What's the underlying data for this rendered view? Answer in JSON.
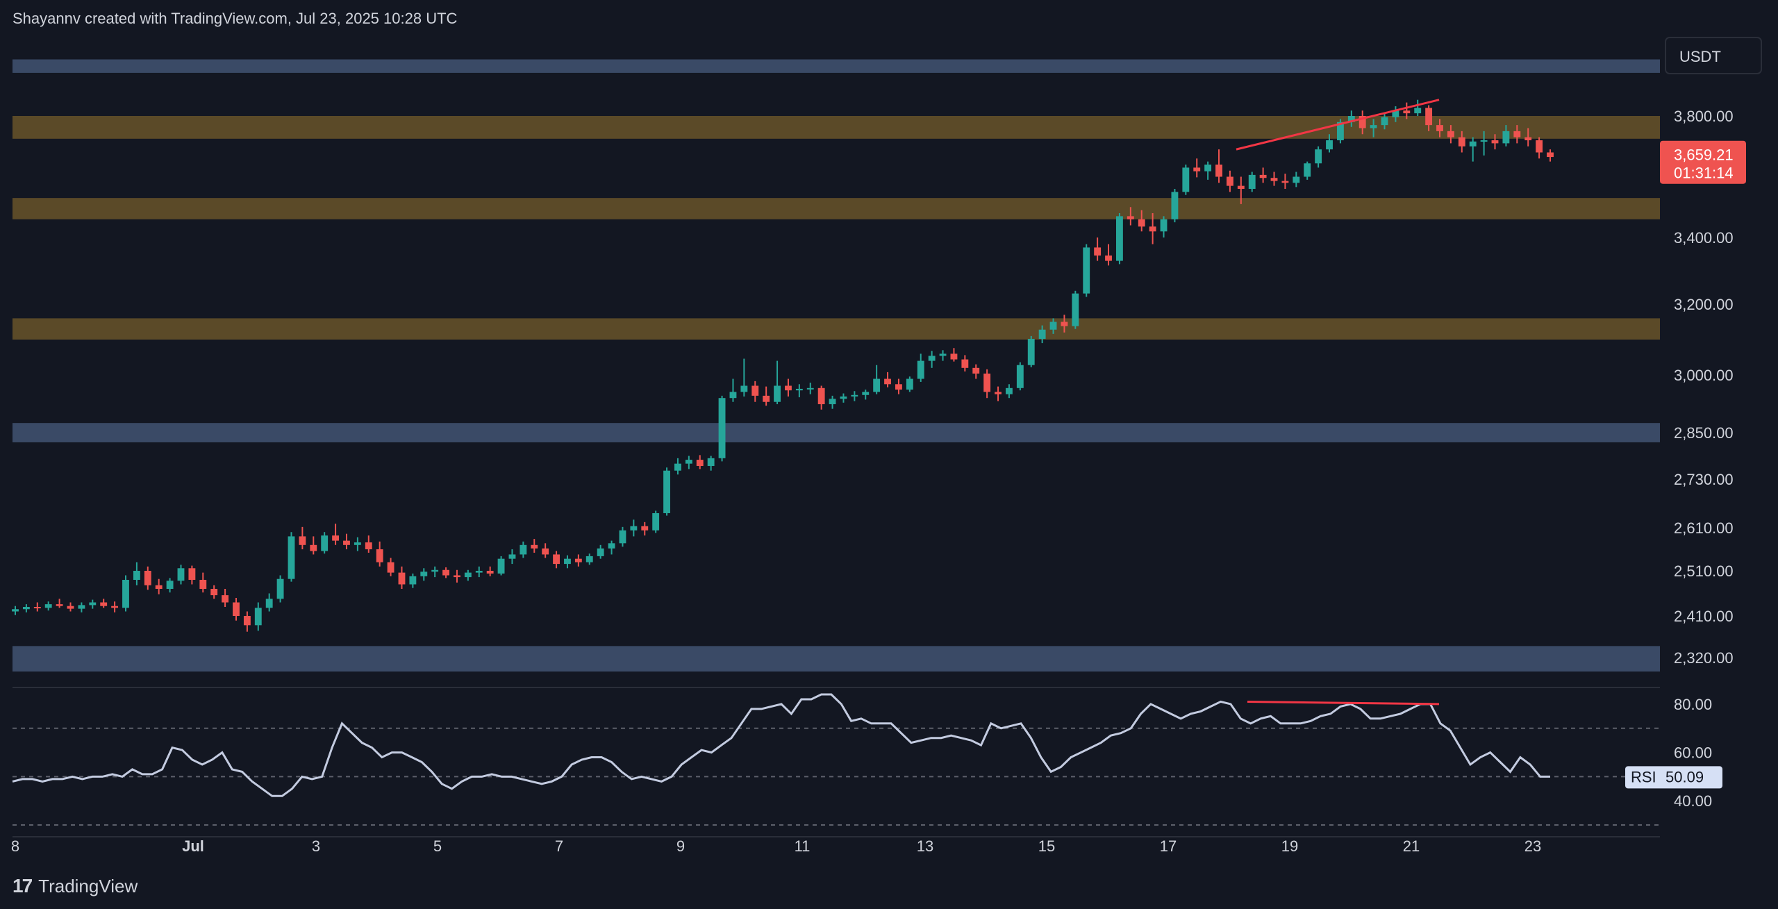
{
  "header": {
    "text": "Shayannv created with TradingView.com, Jul 23, 2025 10:28 UTC"
  },
  "footer": {
    "logo_text": "TradingView"
  },
  "colors": {
    "background": "#131722",
    "up": "#26a69a",
    "down": "#ef5350",
    "supply_zone": "#5b4a28",
    "support_zone": "#3a4a66",
    "rsi_line": "#c3cbe0",
    "divergence": "#f23645"
  },
  "chart_data": [
    {
      "type": "candlestick",
      "currency": "USDT",
      "current_price": "3,659.21",
      "countdown": "01:31:14",
      "price_ticks": [
        "3,800.00",
        "3,659.21",
        "3,400.00",
        "3,200.00",
        "3,000.00",
        "2,850.00",
        "2,730.00",
        "2,610.00",
        "2,510.00",
        "2,410.00",
        "2,320.00"
      ],
      "price_tick_values": [
        3800,
        3400,
        3200,
        3000,
        2850,
        2730,
        2610,
        2510,
        2410,
        2320
      ],
      "x_ticks": [
        "8",
        "Jul",
        "3",
        "5",
        "7",
        "9",
        "11",
        "13",
        "15",
        "17",
        "19",
        "21",
        "23"
      ],
      "zones": [
        {
          "kind": "support",
          "low": 2290,
          "high": 2345
        },
        {
          "kind": "support",
          "low": 2825,
          "high": 2875
        },
        {
          "kind": "supply",
          "low": 3100,
          "high": 3160
        },
        {
          "kind": "supply",
          "low": 3460,
          "high": 3530
        },
        {
          "kind": "supply",
          "low": 3725,
          "high": 3800
        },
        {
          "kind": "support",
          "low": 3960,
          "high": 4010
        }
      ],
      "divergence_price": {
        "from": {
          "x": "Jul 18",
          "y": 3690
        },
        "to": {
          "x": "Jul 21",
          "y": 3860
        }
      },
      "ohlc": [
        [
          2420,
          2432,
          2412,
          2425
        ],
        [
          2425,
          2436,
          2418,
          2430
        ],
        [
          2430,
          2440,
          2420,
          2428
        ],
        [
          2428,
          2442,
          2422,
          2436
        ],
        [
          2436,
          2448,
          2428,
          2432
        ],
        [
          2432,
          2440,
          2420,
          2426
        ],
        [
          2426,
          2440,
          2418,
          2434
        ],
        [
          2434,
          2446,
          2426,
          2440
        ],
        [
          2440,
          2448,
          2428,
          2432
        ],
        [
          2432,
          2442,
          2418,
          2428
        ],
        [
          2428,
          2500,
          2420,
          2490
        ],
        [
          2490,
          2530,
          2478,
          2510
        ],
        [
          2510,
          2520,
          2468,
          2478
        ],
        [
          2478,
          2492,
          2458,
          2470
        ],
        [
          2470,
          2494,
          2462,
          2488
        ],
        [
          2488,
          2524,
          2480,
          2516
        ],
        [
          2516,
          2522,
          2480,
          2490
        ],
        [
          2490,
          2506,
          2462,
          2470
        ],
        [
          2470,
          2478,
          2448,
          2456
        ],
        [
          2456,
          2470,
          2430,
          2440
        ],
        [
          2440,
          2450,
          2400,
          2410
        ],
        [
          2410,
          2420,
          2376,
          2390
        ],
        [
          2390,
          2440,
          2378,
          2428
        ],
        [
          2428,
          2460,
          2420,
          2448
        ],
        [
          2448,
          2500,
          2440,
          2492
        ],
        [
          2492,
          2600,
          2486,
          2590
        ],
        [
          2590,
          2612,
          2560,
          2570
        ],
        [
          2570,
          2590,
          2548,
          2556
        ],
        [
          2556,
          2600,
          2550,
          2592
        ],
        [
          2592,
          2620,
          2570,
          2580
        ],
        [
          2580,
          2596,
          2560,
          2570
        ],
        [
          2570,
          2588,
          2556,
          2576
        ],
        [
          2576,
          2592,
          2552,
          2560
        ],
        [
          2560,
          2578,
          2520,
          2530
        ],
        [
          2530,
          2540,
          2498,
          2506
        ],
        [
          2506,
          2520,
          2470,
          2480
        ],
        [
          2480,
          2504,
          2472,
          2498
        ],
        [
          2498,
          2516,
          2488,
          2508
        ],
        [
          2508,
          2520,
          2496,
          2512
        ],
        [
          2512,
          2518,
          2494,
          2500
        ],
        [
          2500,
          2512,
          2484,
          2496
        ],
        [
          2496,
          2512,
          2488,
          2506
        ],
        [
          2506,
          2520,
          2496,
          2510
        ],
        [
          2510,
          2520,
          2498,
          2504
        ],
        [
          2504,
          2544,
          2500,
          2538
        ],
        [
          2538,
          2560,
          2526,
          2548
        ],
        [
          2548,
          2578,
          2540,
          2570
        ],
        [
          2570,
          2584,
          2552,
          2562
        ],
        [
          2562,
          2574,
          2540,
          2548
        ],
        [
          2548,
          2556,
          2516,
          2526
        ],
        [
          2526,
          2546,
          2516,
          2538
        ],
        [
          2538,
          2548,
          2520,
          2530
        ],
        [
          2530,
          2550,
          2524,
          2544
        ],
        [
          2544,
          2570,
          2538,
          2562
        ],
        [
          2562,
          2580,
          2548,
          2574
        ],
        [
          2574,
          2612,
          2566,
          2604
        ],
        [
          2604,
          2630,
          2590,
          2614
        ],
        [
          2614,
          2624,
          2592,
          2604
        ],
        [
          2604,
          2652,
          2598,
          2646
        ],
        [
          2646,
          2760,
          2640,
          2752
        ],
        [
          2752,
          2784,
          2742,
          2770
        ],
        [
          2770,
          2790,
          2756,
          2780
        ],
        [
          2780,
          2792,
          2756,
          2764
        ],
        [
          2764,
          2790,
          2752,
          2784
        ],
        [
          2784,
          2946,
          2776,
          2940
        ],
        [
          2940,
          2990,
          2930,
          2956
        ],
        [
          2956,
          3046,
          2944,
          2972
        ],
        [
          2972,
          2984,
          2930,
          2946
        ],
        [
          2946,
          2970,
          2920,
          2930
        ],
        [
          2930,
          3040,
          2924,
          2972
        ],
        [
          2972,
          2990,
          2944,
          2960
        ],
        [
          2960,
          2976,
          2942,
          2964
        ],
        [
          2964,
          2980,
          2950,
          2966
        ],
        [
          2966,
          2972,
          2910,
          2924
        ],
        [
          2924,
          2946,
          2912,
          2938
        ],
        [
          2938,
          2952,
          2928,
          2944
        ],
        [
          2944,
          2958,
          2932,
          2948
        ],
        [
          2948,
          2962,
          2936,
          2956
        ],
        [
          2956,
          3028,
          2950,
          2990
        ],
        [
          2990,
          3008,
          2968,
          2976
        ],
        [
          2976,
          2990,
          2950,
          2962
        ],
        [
          2962,
          2996,
          2956,
          2990
        ],
        [
          2990,
          3060,
          2982,
          3040
        ],
        [
          3040,
          3068,
          3020,
          3054
        ],
        [
          3054,
          3070,
          3040,
          3060
        ],
        [
          3060,
          3076,
          3038,
          3044
        ],
        [
          3044,
          3056,
          3010,
          3020
        ],
        [
          3020,
          3030,
          2990,
          3004
        ],
        [
          3004,
          3016,
          2940,
          2956
        ],
        [
          2956,
          2970,
          2932,
          2950
        ],
        [
          2950,
          2976,
          2940,
          2966
        ],
        [
          2966,
          3036,
          2960,
          3028
        ],
        [
          3028,
          3110,
          3022,
          3102
        ],
        [
          3102,
          3140,
          3090,
          3128
        ],
        [
          3128,
          3160,
          3116,
          3150
        ],
        [
          3150,
          3170,
          3120,
          3138
        ],
        [
          3138,
          3240,
          3130,
          3232
        ],
        [
          3232,
          3380,
          3222,
          3370
        ],
        [
          3370,
          3400,
          3330,
          3346
        ],
        [
          3346,
          3380,
          3316,
          3330
        ],
        [
          3330,
          3480,
          3320,
          3470
        ],
        [
          3470,
          3500,
          3440,
          3460
        ],
        [
          3460,
          3490,
          3420,
          3436
        ],
        [
          3436,
          3480,
          3380,
          3420
        ],
        [
          3420,
          3470,
          3400,
          3460
        ],
        [
          3460,
          3560,
          3450,
          3550
        ],
        [
          3550,
          3640,
          3540,
          3630
        ],
        [
          3630,
          3660,
          3598,
          3618
        ],
        [
          3618,
          3650,
          3590,
          3640
        ],
        [
          3640,
          3690,
          3580,
          3600
        ],
        [
          3600,
          3620,
          3550,
          3570
        ],
        [
          3570,
          3600,
          3510,
          3560
        ],
        [
          3560,
          3616,
          3550,
          3606
        ],
        [
          3606,
          3630,
          3580,
          3596
        ],
        [
          3596,
          3616,
          3570,
          3586
        ],
        [
          3586,
          3610,
          3560,
          3580
        ],
        [
          3580,
          3616,
          3566,
          3600
        ],
        [
          3600,
          3650,
          3590,
          3644
        ],
        [
          3644,
          3700,
          3630,
          3690
        ],
        [
          3690,
          3740,
          3680,
          3720
        ],
        [
          3720,
          3790,
          3710,
          3780
        ],
        [
          3780,
          3820,
          3764,
          3800
        ],
        [
          3800,
          3820,
          3740,
          3760
        ],
        [
          3760,
          3790,
          3730,
          3770
        ],
        [
          3770,
          3810,
          3756,
          3796
        ],
        [
          3796,
          3836,
          3780,
          3820
        ],
        [
          3820,
          3850,
          3790,
          3810
        ],
        [
          3810,
          3860,
          3800,
          3830
        ],
        [
          3830,
          3840,
          3750,
          3770
        ],
        [
          3770,
          3790,
          3730,
          3750
        ],
        [
          3750,
          3770,
          3710,
          3730
        ],
        [
          3730,
          3750,
          3680,
          3700
        ],
        [
          3700,
          3730,
          3650,
          3716
        ],
        [
          3716,
          3750,
          3670,
          3720
        ],
        [
          3720,
          3740,
          3690,
          3710
        ],
        [
          3710,
          3770,
          3700,
          3750
        ],
        [
          3750,
          3770,
          3710,
          3730
        ],
        [
          3730,
          3760,
          3700,
          3720
        ],
        [
          3720,
          3730,
          3660,
          3680
        ],
        [
          3680,
          3690,
          3650,
          3665
        ]
      ]
    },
    {
      "type": "line",
      "name": "RSI",
      "current_value": "50.09",
      "ticks": [
        "80.00",
        "60.00",
        "40.00"
      ],
      "tick_values": [
        80,
        60,
        40
      ],
      "guide_levels": [
        70,
        50,
        30
      ],
      "ylim": [
        28,
        84
      ],
      "divergence_rsi": {
        "from": {
          "x": "Jul 18",
          "y": 81
        },
        "to": {
          "x": "Jul 21",
          "y": 80
        }
      },
      "values": [
        48,
        49,
        49,
        48,
        49,
        49,
        50,
        49,
        50,
        50,
        51,
        50,
        53,
        51,
        51,
        53,
        62,
        61,
        57,
        55,
        57,
        60,
        53,
        52,
        48,
        45,
        42,
        42,
        45,
        50,
        49,
        50,
        62,
        72,
        68,
        64,
        62,
        58,
        60,
        60,
        58,
        56,
        52,
        47,
        45,
        48,
        50,
        50,
        51,
        50,
        50,
        49,
        48,
        47,
        48,
        50,
        55,
        57,
        58,
        58,
        56,
        52,
        49,
        50,
        49,
        48,
        50,
        55,
        58,
        61,
        60,
        63,
        66,
        72,
        78,
        78,
        79,
        80,
        76,
        82,
        82,
        84,
        84,
        80,
        73,
        74,
        72,
        72,
        72,
        68,
        64,
        65,
        66,
        66,
        67,
        66,
        65,
        63,
        72,
        70,
        71,
        72,
        66,
        58,
        52,
        54,
        58,
        60,
        62,
        64,
        67,
        68,
        70,
        76,
        80,
        78,
        76,
        74,
        76,
        77,
        79,
        81,
        80,
        74,
        72,
        74,
        75,
        72,
        72,
        72,
        73,
        75,
        76,
        79,
        80,
        78,
        74,
        74,
        75,
        76,
        78,
        80,
        80,
        72,
        69,
        62,
        55,
        58,
        60,
        56,
        52,
        58,
        55,
        50,
        50
      ]
    }
  ]
}
